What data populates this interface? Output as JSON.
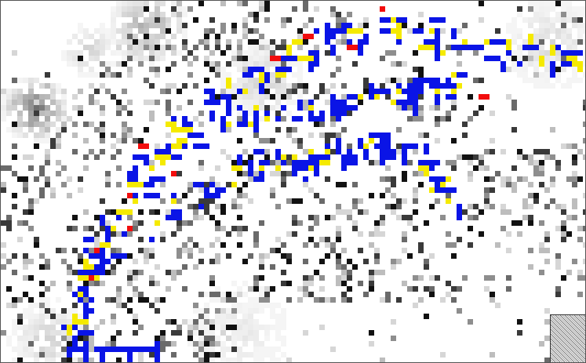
{
  "map": {
    "colors": {
      "background": "#ffffff",
      "frame": "#555555",
      "grey_dark": "#111111",
      "grey_mid": "#6a6a6a",
      "grey_light": "#bdbdbd",
      "blue": "#0a14e6",
      "yellow": "#f5ea00",
      "red": "#f20d0d"
    },
    "legend_categories": [
      "blue",
      "yellow",
      "red",
      "grey"
    ],
    "inset": {
      "icon": "compass-hatch-icon"
    }
  }
}
